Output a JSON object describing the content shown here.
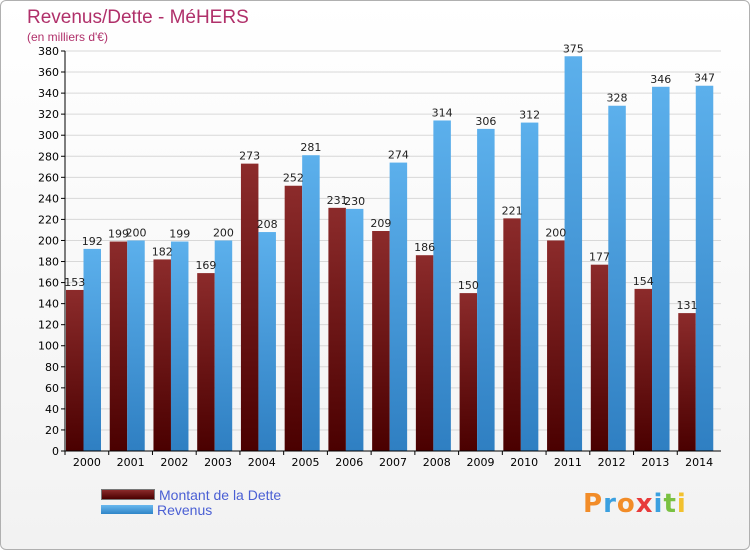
{
  "header": {
    "title": "Revenus/Dette - MéHERS",
    "subtitle": "(en milliers d'€)"
  },
  "logo": {
    "text": "Proxiti",
    "colors": [
      "#f28c28",
      "#3aa0e0",
      "#f28c28",
      "#e83a3a",
      "#3aa0e0",
      "#7ac142",
      "#f2c12e"
    ]
  },
  "colors": {
    "debt": "#7a1f1f",
    "revenue": "#4aa3e3",
    "axis": "#000000",
    "grid": "#d8d8d8"
  },
  "chart_data": {
    "type": "bar",
    "title": "Revenus/Dette - MéHERS",
    "ylabel": "(en milliers d'€)",
    "xlabel": "",
    "categories": [
      "2000",
      "2001",
      "2002",
      "2003",
      "2004",
      "2005",
      "2006",
      "2007",
      "2008",
      "2009",
      "2010",
      "2011",
      "2012",
      "2013",
      "2014"
    ],
    "series": [
      {
        "name": "Montant de la Dette",
        "values": [
          153,
          199,
          182,
          169,
          273,
          252,
          231,
          209,
          186,
          150,
          221,
          200,
          177,
          154,
          131
        ]
      },
      {
        "name": "Revenus",
        "values": [
          192,
          200,
          199,
          200,
          208,
          281,
          230,
          274,
          314,
          306,
          312,
          375,
          328,
          346,
          347
        ]
      }
    ],
    "ylim": [
      0,
      380
    ],
    "ytick_step": 20,
    "grid": true,
    "legend_position": "bottom-left"
  }
}
